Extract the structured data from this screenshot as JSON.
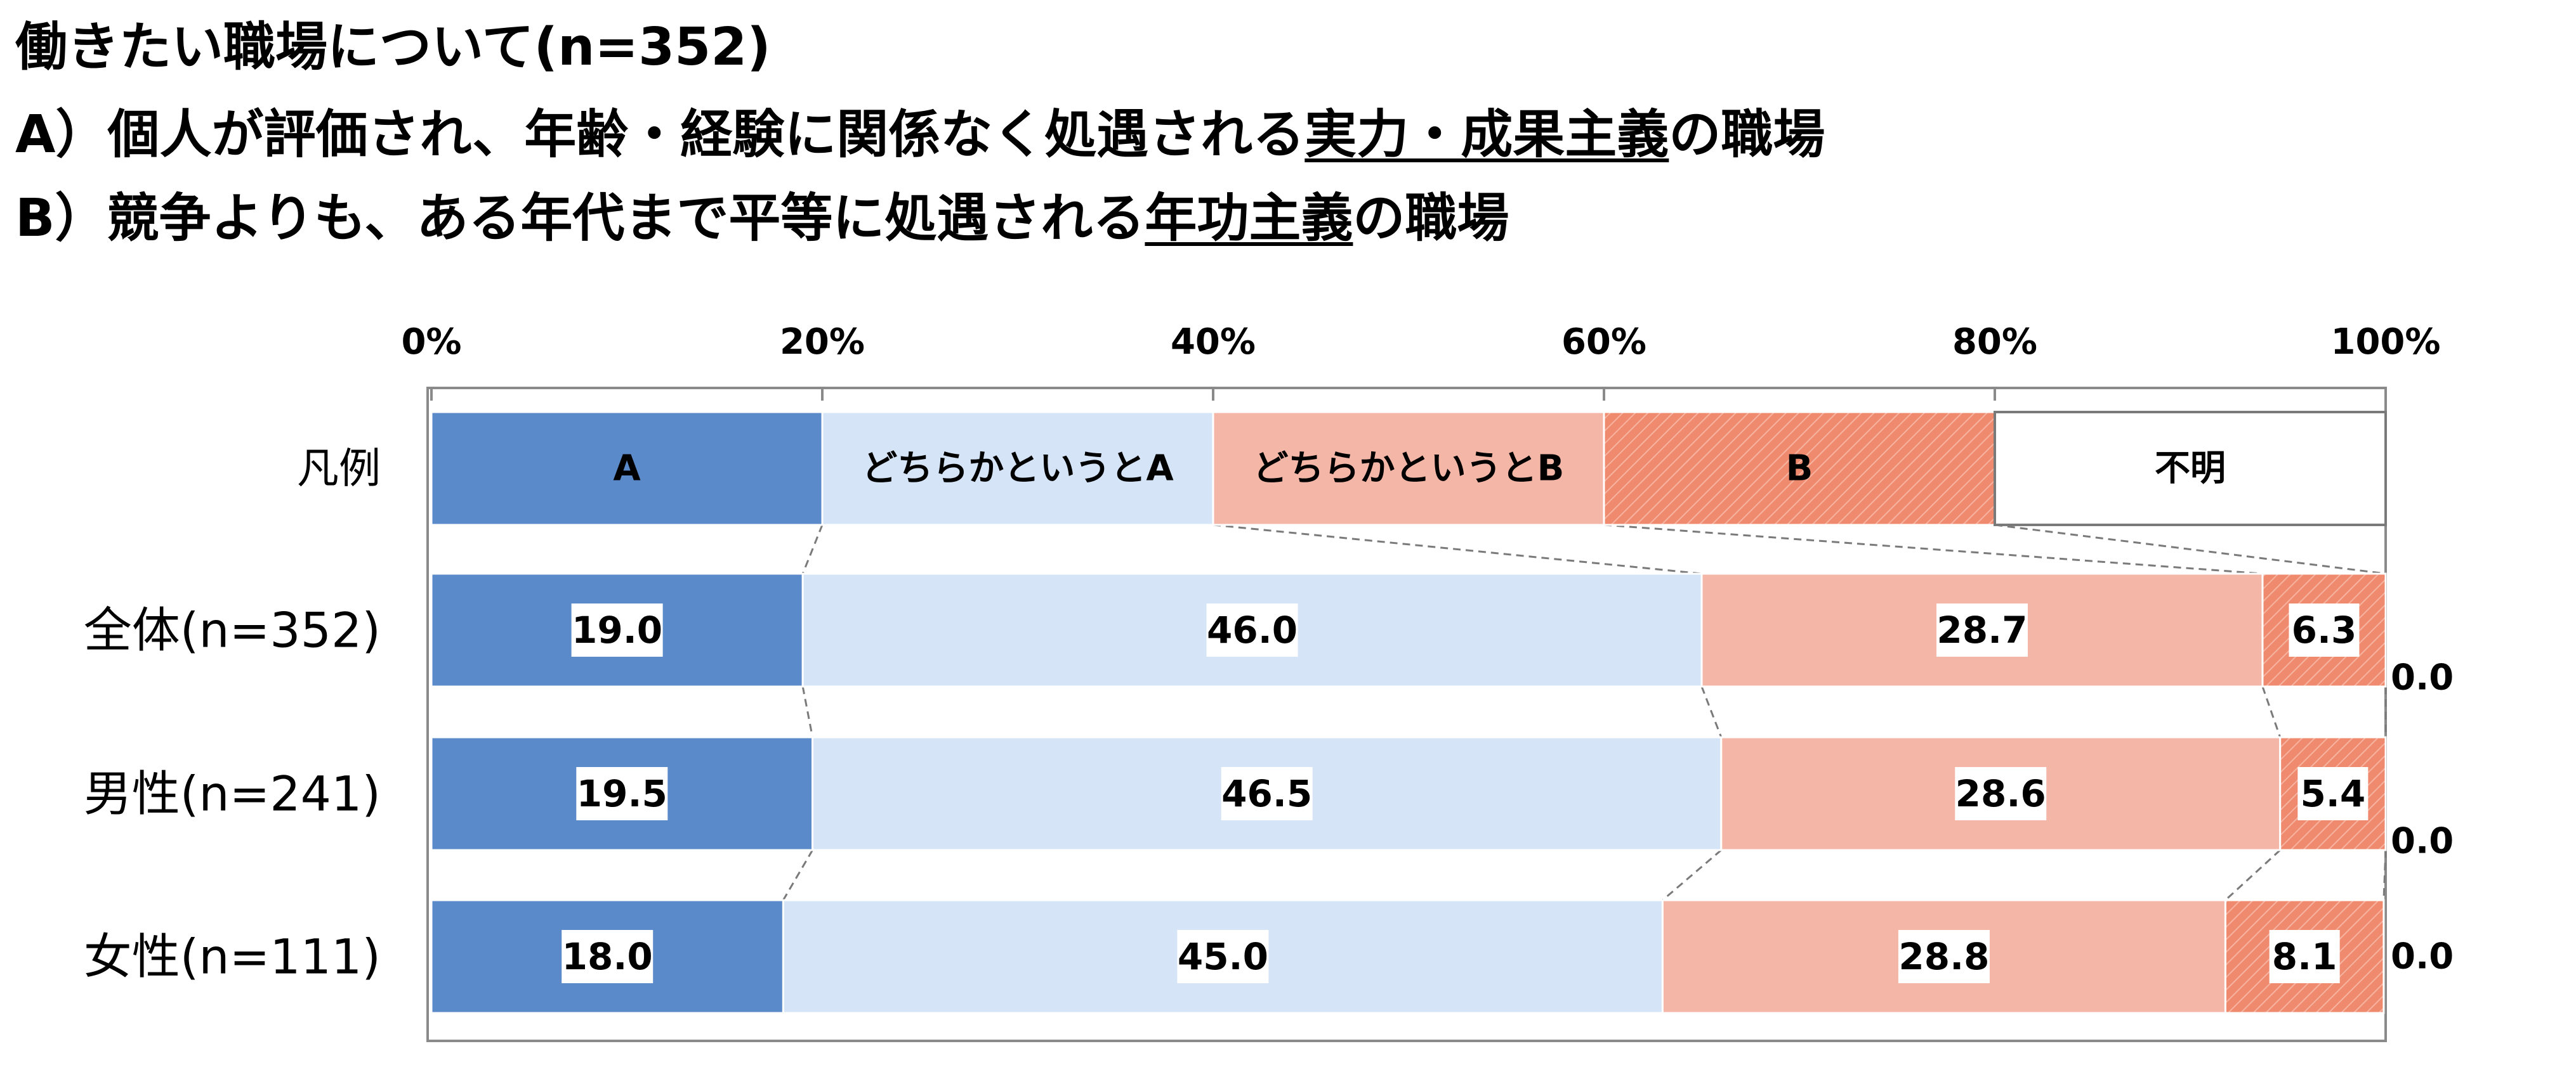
{
  "title": {
    "line1": "働きたい職場について(n=352)",
    "line2_prefix": "A）個人が評価され、年齢・経験に関係なく処遇される",
    "line2_emph": "実力・成果主義",
    "line2_suffix": "の職場",
    "line3_prefix": "B）競争よりも、ある年代まで平等に処遇される",
    "line3_emph": "年功主義",
    "line3_suffix": "の職場"
  },
  "chart_data": {
    "type": "bar",
    "orientation": "horizontal",
    "stacked": true,
    "percent_axis": true,
    "xlim": [
      0,
      100
    ],
    "x_ticks": [
      "0%",
      "20%",
      "40%",
      "60%",
      "80%",
      "100%"
    ],
    "legend_row_label": "凡例",
    "categories": [
      "全体(n=352)",
      "男性(n=241)",
      "女性(n=111)"
    ],
    "series": [
      {
        "name": "A",
        "values": [
          19.0,
          19.5,
          18.0
        ],
        "labels": [
          "19.0",
          "19.5",
          "18.0"
        ],
        "color": "#5a8ac9"
      },
      {
        "name": "どちらかというとA",
        "values": [
          46.0,
          46.5,
          45.0
        ],
        "labels": [
          "46.0",
          "46.5",
          "45.0"
        ],
        "color": "#d6e4f7"
      },
      {
        "name": "どちらかというとB",
        "values": [
          28.7,
          28.6,
          28.8
        ],
        "labels": [
          "28.7",
          "28.6",
          "28.8"
        ],
        "color": "#f4b6a6"
      },
      {
        "name": "B",
        "values": [
          6.3,
          5.4,
          8.1
        ],
        "labels": [
          "6.3",
          "5.4",
          "8.1"
        ],
        "color": "#ef8a6e"
      },
      {
        "name": "不明",
        "values": [
          0.0,
          0.0,
          0.0
        ],
        "labels": [
          "0.0",
          "0.0",
          "0.0"
        ],
        "color": "#ffffff"
      }
    ]
  }
}
